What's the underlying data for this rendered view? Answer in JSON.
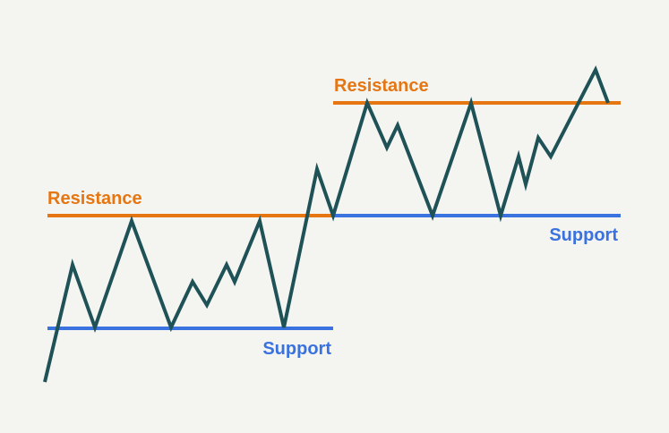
{
  "diagram": {
    "colors": {
      "background": "#f4f4f0",
      "price_line": "#1e5257",
      "resistance": "#e57612",
      "support": "#3a72df"
    },
    "left_zone": {
      "resistance_label": "Resistance",
      "support_label": "Support"
    },
    "right_zone": {
      "resistance_label": "Resistance",
      "support_label": "Support"
    }
  }
}
